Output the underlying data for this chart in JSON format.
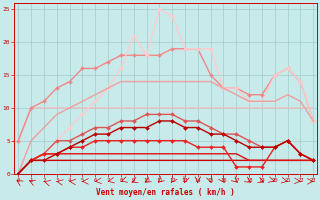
{
  "x": [
    0,
    1,
    2,
    3,
    4,
    5,
    6,
    7,
    8,
    9,
    10,
    11,
    12,
    13,
    14,
    15,
    16,
    17,
    18,
    19,
    20,
    21,
    22,
    23
  ],
  "lines": [
    {
      "y": [
        5,
        10,
        10,
        10,
        10,
        10,
        10,
        10,
        10,
        10,
        10,
        10,
        10,
        10,
        10,
        10,
        10,
        10,
        10,
        10,
        10,
        10,
        10,
        10
      ],
      "color": "#f0c0c0",
      "marker": null,
      "lw": 1.0,
      "ms": 0
    },
    {
      "y": [
        5,
        10,
        11,
        13,
        14,
        16,
        16,
        17,
        18,
        18,
        18,
        18,
        19,
        19,
        19,
        15,
        13,
        13,
        12,
        12,
        15,
        16,
        14,
        8
      ],
      "color": "#f08888",
      "marker": "D",
      "lw": 1.0,
      "ms": 2
    },
    {
      "y": [
        0,
        2,
        3,
        5,
        7,
        9,
        11,
        13,
        16,
        21,
        18,
        25,
        24,
        19,
        19,
        19,
        13,
        13,
        11,
        11,
        15,
        16,
        14,
        8
      ],
      "color": "#ffcccc",
      "marker": "D",
      "lw": 1.0,
      "ms": 2
    },
    {
      "y": [
        0,
        5,
        7,
        9,
        10,
        11,
        12,
        13,
        14,
        14,
        14,
        14,
        14,
        14,
        14,
        14,
        13,
        12,
        11,
        11,
        11,
        12,
        11,
        8
      ],
      "color": "#f0a0a0",
      "marker": null,
      "lw": 1.0,
      "ms": 0
    },
    {
      "y": [
        0,
        2,
        3,
        5,
        5,
        6,
        7,
        7,
        8,
        8,
        9,
        9,
        9,
        8,
        8,
        7,
        6,
        6,
        5,
        4,
        4,
        5,
        3,
        2
      ],
      "color": "#dd5555",
      "marker": "D",
      "lw": 1.0,
      "ms": 2
    },
    {
      "y": [
        0,
        2,
        2,
        2,
        2,
        2,
        2,
        2,
        2,
        2,
        2,
        2,
        2,
        2,
        2,
        2,
        2,
        2,
        2,
        2,
        2,
        2,
        2,
        2
      ],
      "color": "#cc0000",
      "marker": null,
      "lw": 1.0,
      "ms": 0
    },
    {
      "y": [
        0,
        2,
        3,
        3,
        3,
        3,
        3,
        3,
        3,
        3,
        3,
        3,
        3,
        3,
        3,
        3,
        3,
        3,
        2,
        2,
        2,
        2,
        2,
        2
      ],
      "color": "#dd1111",
      "marker": null,
      "lw": 1.0,
      "ms": 0
    },
    {
      "y": [
        0,
        2,
        3,
        3,
        4,
        4,
        5,
        5,
        5,
        5,
        5,
        5,
        5,
        5,
        4,
        4,
        4,
        1,
        1,
        1,
        4,
        5,
        3,
        2
      ],
      "color": "#ee2222",
      "marker": "D",
      "lw": 1.0,
      "ms": 2
    },
    {
      "y": [
        0,
        2,
        2,
        3,
        4,
        5,
        6,
        6,
        7,
        7,
        7,
        8,
        8,
        7,
        7,
        6,
        6,
        5,
        4,
        4,
        4,
        5,
        3,
        2
      ],
      "color": "#bb0000",
      "marker": "D",
      "lw": 1.0,
      "ms": 2
    }
  ],
  "xlabel": "Vent moyen/en rafales ( km/h )",
  "ylim": [
    0,
    26
  ],
  "xlim_min": -0.3,
  "xlim_max": 23.3,
  "yticks": [
    0,
    5,
    10,
    15,
    20,
    25
  ],
  "xticks": [
    0,
    1,
    2,
    3,
    4,
    5,
    6,
    7,
    8,
    9,
    10,
    11,
    12,
    13,
    14,
    15,
    16,
    17,
    18,
    19,
    20,
    21,
    22,
    23
  ],
  "bg_color": "#c8eaea",
  "grid_color": "#a0cccc",
  "tick_color": "#cc0000",
  "label_color": "#cc0000"
}
